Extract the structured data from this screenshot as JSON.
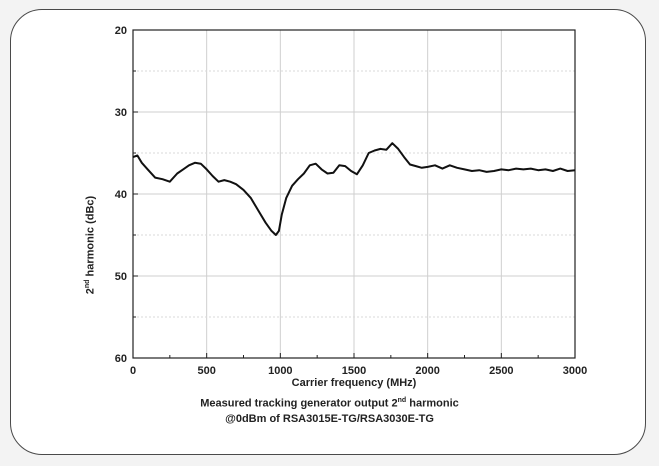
{
  "chart_data": {
    "type": "line",
    "xlabel": "Carrier frequency (MHz)",
    "ylabel_prefix": "2",
    "ylabel_sup": "nd",
    "ylabel_suffix": " harmonic (dBc)",
    "xlim": [
      0,
      3000
    ],
    "ylim": [
      20,
      60
    ],
    "y_inverted": true,
    "x_ticks": [
      "0",
      "500",
      "1000",
      "1500",
      "2000",
      "2500",
      "3000"
    ],
    "y_ticks": [
      "20",
      "30",
      "40",
      "50",
      "60"
    ],
    "grid": true,
    "series": [
      {
        "color": "#111111",
        "x": [
          0,
          30,
          60,
          100,
          150,
          200,
          250,
          300,
          340,
          380,
          420,
          460,
          500,
          540,
          580,
          620,
          660,
          700,
          750,
          800,
          850,
          900,
          940,
          970,
          990,
          1010,
          1040,
          1080,
          1120,
          1160,
          1200,
          1240,
          1280,
          1320,
          1360,
          1400,
          1440,
          1480,
          1520,
          1560,
          1600,
          1640,
          1680,
          1720,
          1760,
          1800,
          1840,
          1880,
          1920,
          1960,
          2000,
          2050,
          2100,
          2150,
          2200,
          2250,
          2300,
          2350,
          2400,
          2450,
          2500,
          2550,
          2600,
          2650,
          2700,
          2750,
          2800,
          2850,
          2900,
          2950,
          3000
        ],
        "y": [
          35.5,
          35.3,
          36.2,
          37.0,
          38.0,
          38.2,
          38.5,
          37.5,
          37.0,
          36.5,
          36.2,
          36.3,
          37.0,
          37.8,
          38.5,
          38.3,
          38.5,
          38.8,
          39.5,
          40.5,
          42.0,
          43.5,
          44.5,
          45.0,
          44.5,
          42.5,
          40.5,
          39.0,
          38.2,
          37.5,
          36.5,
          36.3,
          37.0,
          37.5,
          37.4,
          36.5,
          36.6,
          37.2,
          37.6,
          36.5,
          35.0,
          34.7,
          34.5,
          34.6,
          33.8,
          34.5,
          35.5,
          36.4,
          36.6,
          36.8,
          36.7,
          36.5,
          36.9,
          36.5,
          36.8,
          37.0,
          37.2,
          37.1,
          37.3,
          37.2,
          37.0,
          37.1,
          36.9,
          37.0,
          36.9,
          37.1,
          37.0,
          37.2,
          36.9,
          37.2,
          37.1
        ]
      }
    ],
    "caption_line1_prefix": "Measured tracking generator output 2",
    "caption_line1_sup": "nd",
    "caption_line1_suffix": " harmonic",
    "caption_line2": "@0dBm of RSA3015E-TG/RSA3030E-TG"
  }
}
